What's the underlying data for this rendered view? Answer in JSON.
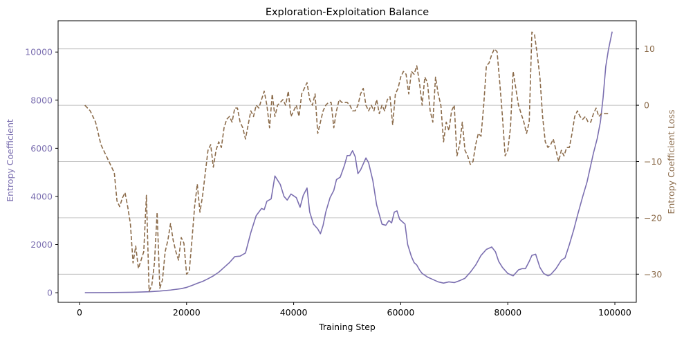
{
  "chart_data": {
    "type": "line",
    "title": "Exploration-Exploitation Balance",
    "xlabel": "Training Step",
    "xlim": [
      -4000,
      104000
    ],
    "xticks": [
      0,
      20000,
      40000,
      60000,
      80000,
      100000
    ],
    "xtick_labels": [
      "0",
      "20000",
      "40000",
      "60000",
      "80000",
      "100000"
    ],
    "grid": "horizontal lines at right-axis ticks",
    "left_axis": {
      "label": "Entropy Coefficient",
      "color": "#7b6fb0",
      "ylim": [
        -400,
        11300
      ],
      "ticks": [
        0,
        2000,
        4000,
        6000,
        8000,
        10000
      ],
      "tick_labels": [
        "0",
        "2000",
        "4000",
        "6000",
        "8000",
        "10000"
      ]
    },
    "right_axis": {
      "label": "Entropy Coefficient Loss",
      "color": "#8b6b4a",
      "ylim": [
        -35,
        15
      ],
      "ticks": [
        -30,
        -20,
        -10,
        0,
        10
      ],
      "tick_labels": [
        "−30",
        "−20",
        "−10",
        "0",
        "10"
      ]
    },
    "series": [
      {
        "axis": "left",
        "style": "solid",
        "color": "#7b6fb0",
        "points": [
          [
            1000,
            0
          ],
          [
            5000,
            5
          ],
          [
            10000,
            20
          ],
          [
            13000,
            40
          ],
          [
            15000,
            70
          ],
          [
            17000,
            110
          ],
          [
            19000,
            170
          ],
          [
            20000,
            220
          ],
          [
            21000,
            300
          ],
          [
            22000,
            390
          ],
          [
            23000,
            470
          ],
          [
            24000,
            580
          ],
          [
            25000,
            700
          ],
          [
            26000,
            850
          ],
          [
            27000,
            1050
          ],
          [
            28000,
            1250
          ],
          [
            29000,
            1500
          ],
          [
            30000,
            1520
          ],
          [
            31000,
            1650
          ],
          [
            32000,
            2500
          ],
          [
            33000,
            3200
          ],
          [
            34000,
            3500
          ],
          [
            34500,
            3450
          ],
          [
            35000,
            3800
          ],
          [
            35800,
            3900
          ],
          [
            36500,
            4850
          ],
          [
            37500,
            4500
          ],
          [
            38200,
            4000
          ],
          [
            38800,
            3850
          ],
          [
            39500,
            4100
          ],
          [
            40500,
            3950
          ],
          [
            41200,
            3550
          ],
          [
            41800,
            4050
          ],
          [
            42500,
            4350
          ],
          [
            43000,
            3350
          ],
          [
            43700,
            2850
          ],
          [
            44500,
            2650
          ],
          [
            45000,
            2450
          ],
          [
            45500,
            2800
          ],
          [
            46000,
            3350
          ],
          [
            46800,
            3950
          ],
          [
            47500,
            4250
          ],
          [
            48000,
            4700
          ],
          [
            48700,
            4800
          ],
          [
            49500,
            5300
          ],
          [
            50000,
            5700
          ],
          [
            50500,
            5700
          ],
          [
            51000,
            5900
          ],
          [
            51500,
            5650
          ],
          [
            52000,
            4950
          ],
          [
            52500,
            5100
          ],
          [
            53000,
            5350
          ],
          [
            53500,
            5600
          ],
          [
            54000,
            5400
          ],
          [
            54800,
            4650
          ],
          [
            55500,
            3650
          ],
          [
            56500,
            2850
          ],
          [
            57200,
            2800
          ],
          [
            57800,
            3000
          ],
          [
            58300,
            2900
          ],
          [
            58800,
            3350
          ],
          [
            59300,
            3400
          ],
          [
            59800,
            3050
          ],
          [
            60300,
            2950
          ],
          [
            60800,
            2850
          ],
          [
            61300,
            2000
          ],
          [
            62000,
            1500
          ],
          [
            62500,
            1250
          ],
          [
            63000,
            1150
          ],
          [
            63500,
            950
          ],
          [
            64000,
            800
          ],
          [
            65000,
            650
          ],
          [
            66000,
            550
          ],
          [
            67000,
            450
          ],
          [
            68000,
            400
          ],
          [
            69000,
            450
          ],
          [
            70000,
            420
          ],
          [
            71000,
            500
          ],
          [
            72000,
            600
          ],
          [
            73000,
            850
          ],
          [
            74000,
            1150
          ],
          [
            75000,
            1550
          ],
          [
            76000,
            1800
          ],
          [
            77000,
            1900
          ],
          [
            77700,
            1700
          ],
          [
            78300,
            1300
          ],
          [
            79000,
            1050
          ],
          [
            80000,
            800
          ],
          [
            81000,
            700
          ],
          [
            82000,
            950
          ],
          [
            82700,
            1000
          ],
          [
            83300,
            1000
          ],
          [
            84000,
            1300
          ],
          [
            84500,
            1550
          ],
          [
            85200,
            1600
          ],
          [
            86000,
            1050
          ],
          [
            86700,
            800
          ],
          [
            87500,
            700
          ],
          [
            88000,
            750
          ],
          [
            89000,
            1000
          ],
          [
            90000,
            1350
          ],
          [
            90700,
            1450
          ],
          [
            91500,
            2000
          ],
          [
            92300,
            2600
          ],
          [
            93000,
            3200
          ],
          [
            94000,
            4000
          ],
          [
            94800,
            4600
          ],
          [
            95500,
            5300
          ],
          [
            96000,
            5800
          ],
          [
            96700,
            6400
          ],
          [
            97300,
            7100
          ],
          [
            97800,
            8100
          ],
          [
            98300,
            9400
          ],
          [
            98800,
            10100
          ],
          [
            99500,
            10850
          ]
        ]
      },
      {
        "axis": "right",
        "style": "dashed",
        "color": "#8b6b4a",
        "points": [
          [
            1000,
            0
          ],
          [
            2000,
            -1
          ],
          [
            3000,
            -3
          ],
          [
            4000,
            -7
          ],
          [
            4500,
            -8
          ],
          [
            5500,
            -10
          ],
          [
            6500,
            -12
          ],
          [
            7000,
            -17
          ],
          [
            7500,
            -18
          ],
          [
            8000,
            -16.5
          ],
          [
            8500,
            -15.5
          ],
          [
            9000,
            -18
          ],
          [
            9500,
            -21
          ],
          [
            10000,
            -28
          ],
          [
            10500,
            -25
          ],
          [
            11000,
            -29
          ],
          [
            11500,
            -27.5
          ],
          [
            12000,
            -26
          ],
          [
            12500,
            -16
          ],
          [
            13000,
            -33
          ],
          [
            13500,
            -32
          ],
          [
            14000,
            -28
          ],
          [
            14500,
            -19
          ],
          [
            15000,
            -32.5
          ],
          [
            15500,
            -31
          ],
          [
            16000,
            -26
          ],
          [
            16500,
            -24
          ],
          [
            17000,
            -21
          ],
          [
            17500,
            -24
          ],
          [
            18000,
            -26
          ],
          [
            18500,
            -27.5
          ],
          [
            19000,
            -23.5
          ],
          [
            19500,
            -24.5
          ],
          [
            20000,
            -30
          ],
          [
            20500,
            -29.5
          ],
          [
            21000,
            -24
          ],
          [
            21500,
            -18
          ],
          [
            22000,
            -14
          ],
          [
            22500,
            -19
          ],
          [
            23000,
            -16
          ],
          [
            23500,
            -12
          ],
          [
            24000,
            -8
          ],
          [
            24500,
            -7
          ],
          [
            25000,
            -11
          ],
          [
            25500,
            -8
          ],
          [
            26000,
            -6.5
          ],
          [
            26500,
            -7.5
          ],
          [
            27000,
            -4
          ],
          [
            27500,
            -2.5
          ],
          [
            28000,
            -2
          ],
          [
            28500,
            -3
          ],
          [
            29000,
            -0.5
          ],
          [
            29500,
            -0.5
          ],
          [
            30000,
            -3
          ],
          [
            30500,
            -4
          ],
          [
            31000,
            -6
          ],
          [
            31500,
            -3.5
          ],
          [
            32000,
            -1
          ],
          [
            32500,
            -2
          ],
          [
            33000,
            0
          ],
          [
            33500,
            -0.5
          ],
          [
            34000,
            1
          ],
          [
            34500,
            2.5
          ],
          [
            35000,
            0
          ],
          [
            35500,
            -4
          ],
          [
            36000,
            2
          ],
          [
            36500,
            -2
          ],
          [
            37000,
            0
          ],
          [
            37500,
            0.5
          ],
          [
            38000,
            1
          ],
          [
            38500,
            0
          ],
          [
            39000,
            2.5
          ],
          [
            39500,
            -2
          ],
          [
            40000,
            -1
          ],
          [
            40500,
            0
          ],
          [
            41000,
            -2
          ],
          [
            41500,
            2
          ],
          [
            42000,
            3
          ],
          [
            42500,
            4
          ],
          [
            43000,
            1
          ],
          [
            43500,
            0
          ],
          [
            44000,
            2
          ],
          [
            44500,
            -5
          ],
          [
            45000,
            -3
          ],
          [
            45500,
            -1
          ],
          [
            46000,
            0
          ],
          [
            46500,
            0.5
          ],
          [
            47000,
            0.5
          ],
          [
            47500,
            -4
          ],
          [
            48000,
            -1
          ],
          [
            48500,
            1
          ],
          [
            49000,
            0.5
          ],
          [
            49500,
            0.5
          ],
          [
            50000,
            0.5
          ],
          [
            50500,
            0
          ],
          [
            51000,
            -1
          ],
          [
            51500,
            -1
          ],
          [
            52000,
            0
          ],
          [
            52500,
            2
          ],
          [
            53000,
            3
          ],
          [
            53500,
            0
          ],
          [
            54000,
            -1
          ],
          [
            54500,
            0
          ],
          [
            55000,
            -1
          ],
          [
            55500,
            1
          ],
          [
            56000,
            -1.5
          ],
          [
            56500,
            0
          ],
          [
            57000,
            -1
          ],
          [
            57500,
            1
          ],
          [
            58000,
            1.5
          ],
          [
            58500,
            -3.5
          ],
          [
            59000,
            2
          ],
          [
            59500,
            3
          ],
          [
            60000,
            5
          ],
          [
            60500,
            6
          ],
          [
            61000,
            5.5
          ],
          [
            61500,
            2
          ],
          [
            62000,
            6
          ],
          [
            62500,
            5.5
          ],
          [
            63000,
            7
          ],
          [
            63500,
            4
          ],
          [
            64000,
            0
          ],
          [
            64500,
            5
          ],
          [
            65000,
            4
          ],
          [
            65500,
            -1
          ],
          [
            66000,
            -3
          ],
          [
            66500,
            5
          ],
          [
            67000,
            2
          ],
          [
            67500,
            0
          ],
          [
            68000,
            -6.5
          ],
          [
            68500,
            -3
          ],
          [
            69000,
            -4.5
          ],
          [
            69500,
            -1
          ],
          [
            70000,
            0
          ],
          [
            70500,
            -9
          ],
          [
            71000,
            -7
          ],
          [
            71500,
            -3
          ],
          [
            72000,
            -8
          ],
          [
            72500,
            -9
          ],
          [
            73000,
            -10.5
          ],
          [
            73500,
            -10
          ],
          [
            74000,
            -7
          ],
          [
            74500,
            -5
          ],
          [
            75000,
            -5.5
          ],
          [
            75500,
            0
          ],
          [
            76000,
            7
          ],
          [
            76500,
            7.5
          ],
          [
            77000,
            9
          ],
          [
            77500,
            10
          ],
          [
            78000,
            9.5
          ],
          [
            78500,
            4
          ],
          [
            79000,
            -2
          ],
          [
            79500,
            -9
          ],
          [
            80000,
            -8
          ],
          [
            80500,
            -4
          ],
          [
            81000,
            6
          ],
          [
            81500,
            3
          ],
          [
            82000,
            0
          ],
          [
            82500,
            -1.5
          ],
          [
            83000,
            -3
          ],
          [
            83500,
            -5
          ],
          [
            84000,
            -3
          ],
          [
            84500,
            13
          ],
          [
            85000,
            12.5
          ],
          [
            85500,
            9
          ],
          [
            86000,
            5
          ],
          [
            86500,
            -2
          ],
          [
            87000,
            -6.5
          ],
          [
            87500,
            -7.5
          ],
          [
            88000,
            -7
          ],
          [
            88500,
            -6
          ],
          [
            89000,
            -8
          ],
          [
            89500,
            -10
          ],
          [
            90000,
            -8
          ],
          [
            90500,
            -9
          ],
          [
            91000,
            -7.5
          ],
          [
            91500,
            -7.5
          ],
          [
            92000,
            -5
          ],
          [
            92500,
            -2
          ],
          [
            93000,
            -1
          ],
          [
            93500,
            -2
          ],
          [
            94000,
            -2.5
          ],
          [
            94500,
            -2
          ],
          [
            95000,
            -3
          ],
          [
            95500,
            -3
          ],
          [
            96000,
            -1.5
          ],
          [
            96500,
            -0.5
          ],
          [
            97000,
            -2
          ],
          [
            97500,
            -1.5
          ],
          [
            98000,
            -1.5
          ],
          [
            99000,
            -1.5
          ]
        ]
      }
    ]
  }
}
